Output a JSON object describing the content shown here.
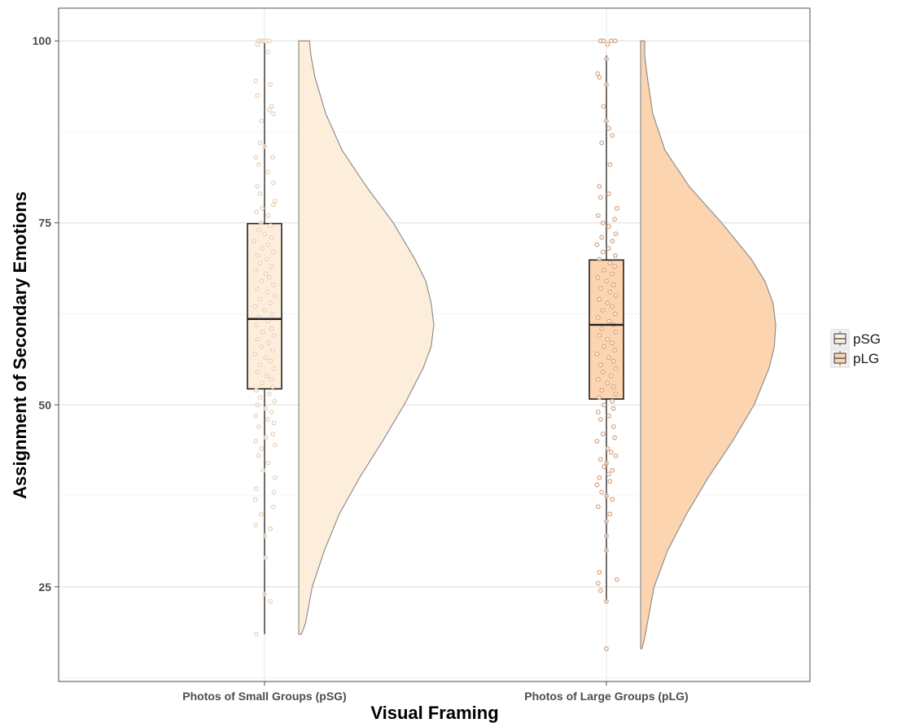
{
  "chart_data": {
    "type": "raincloud",
    "xlabel": "Visual Framing",
    "ylabel": "Assignment of Secondary Emotions",
    "ylim": [
      12,
      104.5
    ],
    "yticks": [
      25,
      50,
      75,
      100
    ],
    "grid": true,
    "legend_position": "right",
    "categories": [
      "Photos of Small Groups (pSG)",
      "Photos of Large Groups (pLG)"
    ],
    "legend": [
      {
        "label": "pSG",
        "color": "#FDEEDC"
      },
      {
        "label": "pLG",
        "color": "#FDD4B0"
      }
    ],
    "series": [
      {
        "category": "Photos of Small Groups (pSG)",
        "fill": "#FDEEDC",
        "point_color": "#E8D2BA",
        "box": {
          "whisker_low": 18.5,
          "q1": 52.2,
          "median": 61.8,
          "q3": 74.9,
          "whisker_high": 100
        },
        "density": {
          "y": [
            18.5,
            20,
            25,
            30,
            35,
            40,
            45,
            50,
            55,
            58,
            61,
            64,
            67,
            70,
            75,
            80,
            85,
            90,
            95,
            98,
            100
          ],
          "w": [
            0.02,
            0.05,
            0.1,
            0.19,
            0.3,
            0.45,
            0.62,
            0.78,
            0.92,
            0.98,
            1.0,
            0.98,
            0.94,
            0.86,
            0.7,
            0.5,
            0.32,
            0.2,
            0.12,
            0.09,
            0.08
          ]
        },
        "points": [
          [
            100,
            -0.1
          ],
          [
            100,
            -0.06
          ],
          [
            100,
            -0.02
          ],
          [
            100,
            0.02
          ],
          [
            100,
            0.08
          ],
          [
            99.5,
            -0.12
          ],
          [
            98.5,
            0.05
          ],
          [
            94.5,
            -0.15
          ],
          [
            94,
            0.1
          ],
          [
            92.5,
            -0.12
          ],
          [
            91,
            0.12
          ],
          [
            90.5,
            0.08
          ],
          [
            90,
            0.15
          ],
          [
            89,
            -0.05
          ],
          [
            86,
            -0.08
          ],
          [
            85.5,
            0.0
          ],
          [
            84,
            0.14
          ],
          [
            84,
            -0.15
          ],
          [
            83,
            -0.1
          ],
          [
            82,
            0.05
          ],
          [
            80.5,
            0.15
          ],
          [
            80,
            -0.12
          ],
          [
            79,
            -0.08
          ],
          [
            78,
            0.18
          ],
          [
            77.5,
            0.15
          ],
          [
            77,
            -0.04
          ],
          [
            76.5,
            -0.14
          ],
          [
            76,
            0.06
          ],
          [
            75,
            -0.06
          ],
          [
            74.6,
            0.1
          ],
          [
            74,
            -0.1
          ],
          [
            73.5,
            0.0
          ],
          [
            73,
            0.12
          ],
          [
            72.5,
            -0.18
          ],
          [
            72,
            0.06
          ],
          [
            71.5,
            -0.04
          ],
          [
            71,
            0.15
          ],
          [
            70.5,
            -0.12
          ],
          [
            70,
            0.04
          ],
          [
            69.5,
            -0.08
          ],
          [
            69,
            0.12
          ],
          [
            68.5,
            -0.15
          ],
          [
            68,
            0.02
          ],
          [
            67.5,
            0.08
          ],
          [
            67,
            -0.05
          ],
          [
            66.5,
            0.15
          ],
          [
            66,
            -0.12
          ],
          [
            65.5,
            0.05
          ],
          [
            65,
            0.18
          ],
          [
            64.5,
            -0.08
          ],
          [
            64,
            0.1
          ],
          [
            63.5,
            -0.16
          ],
          [
            63,
            0.0
          ],
          [
            62.5,
            0.13
          ],
          [
            62,
            -0.1
          ],
          [
            61.5,
            0.05
          ],
          [
            61,
            -0.14
          ],
          [
            60.5,
            0.12
          ],
          [
            60,
            -0.03
          ],
          [
            59.5,
            0.16
          ],
          [
            59,
            -0.12
          ],
          [
            58.5,
            0.07
          ],
          [
            58,
            -0.05
          ],
          [
            57.5,
            0.14
          ],
          [
            57,
            -0.16
          ],
          [
            56.5,
            0.02
          ],
          [
            56,
            0.1
          ],
          [
            55.5,
            -0.08
          ],
          [
            55,
            0.16
          ],
          [
            54.5,
            -0.12
          ],
          [
            54,
            0.04
          ],
          [
            53.5,
            0.12
          ],
          [
            53,
            -0.04
          ],
          [
            52.5,
            0.14
          ],
          [
            52,
            -0.14
          ],
          [
            51.5,
            0.08
          ],
          [
            51,
            -0.08
          ],
          [
            50.5,
            0.17
          ],
          [
            50,
            -0.12
          ],
          [
            49.5,
            0.02
          ],
          [
            49,
            0.12
          ],
          [
            48.5,
            -0.15
          ],
          [
            48,
            0.05
          ],
          [
            47.5,
            0.16
          ],
          [
            47,
            -0.1
          ],
          [
            46,
            0.14
          ],
          [
            45.5,
            0.02
          ],
          [
            45,
            -0.15
          ],
          [
            44.5,
            0.18
          ],
          [
            44,
            -0.05
          ],
          [
            43,
            -0.1
          ],
          [
            42,
            0.06
          ],
          [
            41,
            -0.02
          ],
          [
            40,
            0.18
          ],
          [
            38.5,
            -0.14
          ],
          [
            38,
            0.16
          ],
          [
            37,
            -0.16
          ],
          [
            36,
            0.15
          ],
          [
            35,
            -0.06
          ],
          [
            33.5,
            -0.15
          ],
          [
            33,
            0.1
          ],
          [
            32,
            0.0
          ],
          [
            29,
            0.02
          ],
          [
            24,
            0.0
          ],
          [
            23,
            0.1
          ],
          [
            18.5,
            -0.14
          ]
        ]
      },
      {
        "category": "Photos of Large Groups (pLG)",
        "fill": "#FDD4B0",
        "point_color": "#D9A986",
        "box": {
          "whisker_low": 23,
          "q1": 50.8,
          "median": 61,
          "q3": 69.9,
          "whisker_high": 98
        },
        "density": {
          "y": [
            16.5,
            18,
            20,
            25,
            30,
            35,
            40,
            45,
            50,
            55,
            58,
            61,
            64,
            67,
            70,
            75,
            80,
            85,
            90,
            95,
            98,
            100
          ],
          "w": [
            0.01,
            0.03,
            0.05,
            0.1,
            0.2,
            0.34,
            0.5,
            0.68,
            0.84,
            0.95,
            0.99,
            1.0,
            0.98,
            0.92,
            0.82,
            0.6,
            0.36,
            0.18,
            0.09,
            0.05,
            0.03,
            0.03
          ]
        },
        "points": [
          [
            100,
            -0.1
          ],
          [
            100,
            -0.05
          ],
          [
            100,
            0.08
          ],
          [
            100,
            0.15
          ],
          [
            99.5,
            0.02
          ],
          [
            97.5,
            0.0
          ],
          [
            95.5,
            -0.15
          ],
          [
            95,
            -0.12
          ],
          [
            94,
            0.0
          ],
          [
            91,
            -0.05
          ],
          [
            89,
            0.0
          ],
          [
            88,
            0.04
          ],
          [
            87,
            0.1
          ],
          [
            86,
            -0.08
          ],
          [
            83,
            0.06
          ],
          [
            80,
            -0.12
          ],
          [
            79,
            0.04
          ],
          [
            78.5,
            -0.1
          ],
          [
            77,
            0.18
          ],
          [
            76,
            -0.14
          ],
          [
            75.5,
            0.14
          ],
          [
            75,
            -0.06
          ],
          [
            74.5,
            0.04
          ],
          [
            73.5,
            0.16
          ],
          [
            73,
            -0.08
          ],
          [
            72.5,
            0.1
          ],
          [
            72,
            -0.16
          ],
          [
            71.5,
            0.04
          ],
          [
            71,
            -0.06
          ],
          [
            70.5,
            0.15
          ],
          [
            70,
            -0.12
          ],
          [
            69.5,
            0.06
          ],
          [
            69,
            0.14
          ],
          [
            68.5,
            -0.04
          ],
          [
            68,
            0.1
          ],
          [
            67.5,
            -0.15
          ],
          [
            67,
            0.0
          ],
          [
            66.5,
            0.12
          ],
          [
            66,
            -0.1
          ],
          [
            65.5,
            0.06
          ],
          [
            65,
            0.16
          ],
          [
            64.5,
            -0.12
          ],
          [
            64,
            0.02
          ],
          [
            63.5,
            0.1
          ],
          [
            63,
            -0.06
          ],
          [
            62.5,
            0.15
          ],
          [
            62,
            -0.14
          ],
          [
            61.5,
            0.05
          ],
          [
            61,
            0.12
          ],
          [
            60.5,
            -0.08
          ],
          [
            60,
            0.16
          ],
          [
            59.5,
            -0.12
          ],
          [
            59,
            0.02
          ],
          [
            58.5,
            0.1
          ],
          [
            58,
            -0.04
          ],
          [
            57.5,
            0.14
          ],
          [
            57,
            -0.16
          ],
          [
            56.5,
            0.04
          ],
          [
            56,
            0.12
          ],
          [
            55.5,
            -0.1
          ],
          [
            55,
            0.16
          ],
          [
            54.5,
            -0.06
          ],
          [
            54,
            0.08
          ],
          [
            53.5,
            -0.14
          ],
          [
            53,
            0.02
          ],
          [
            52.5,
            0.12
          ],
          [
            52,
            -0.08
          ],
          [
            51.5,
            0.16
          ],
          [
            51,
            -0.12
          ],
          [
            50.5,
            0.1
          ],
          [
            50,
            -0.04
          ],
          [
            49.5,
            0.12
          ],
          [
            49,
            -0.14
          ],
          [
            48.5,
            0.04
          ],
          [
            48,
            -0.1
          ],
          [
            47,
            0.12
          ],
          [
            46,
            -0.06
          ],
          [
            45.5,
            0.14
          ],
          [
            45,
            -0.16
          ],
          [
            44,
            0.02
          ],
          [
            43.5,
            0.08
          ],
          [
            43,
            0.16
          ],
          [
            42.5,
            -0.1
          ],
          [
            42,
            0.0
          ],
          [
            41.5,
            -0.04
          ],
          [
            41,
            0.1
          ],
          [
            40.5,
            0.04
          ],
          [
            40,
            -0.12
          ],
          [
            39.5,
            0.06
          ],
          [
            39,
            -0.16
          ],
          [
            38,
            -0.08
          ],
          [
            37.5,
            0.0
          ],
          [
            37,
            0.1
          ],
          [
            36,
            -0.14
          ],
          [
            35,
            0.06
          ],
          [
            34,
            0.0
          ],
          [
            32,
            0.0
          ],
          [
            30,
            0.0
          ],
          [
            27,
            -0.12
          ],
          [
            26,
            0.18
          ],
          [
            25.5,
            -0.14
          ],
          [
            24.5,
            -0.1
          ],
          [
            23,
            0.0
          ],
          [
            16.5,
            0.0
          ]
        ]
      }
    ]
  }
}
